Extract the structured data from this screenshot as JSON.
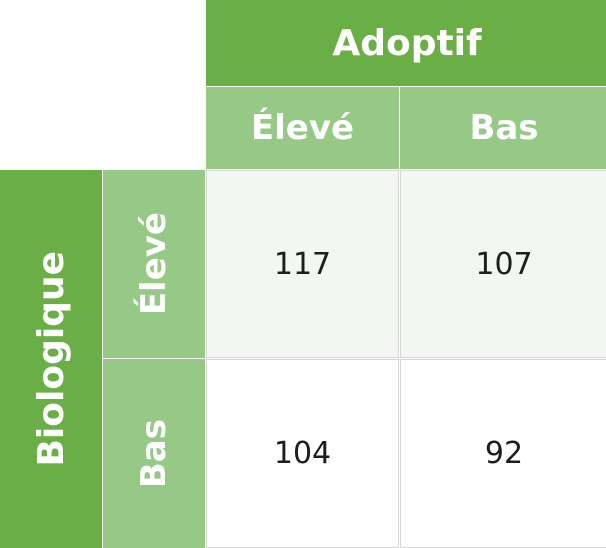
{
  "table": {
    "column_group": "Adoptif",
    "row_group": "Biologique",
    "column_headers": [
      "Élevé",
      "Bas"
    ],
    "row_headers": [
      "Élevé",
      "Bas"
    ],
    "values": [
      [
        "117",
        "107"
      ],
      [
        "104",
        "92"
      ]
    ]
  },
  "colors": {
    "header_dark": "#6aaf45",
    "header_light": "#96c985",
    "tint_row": "#f3f7f1"
  }
}
